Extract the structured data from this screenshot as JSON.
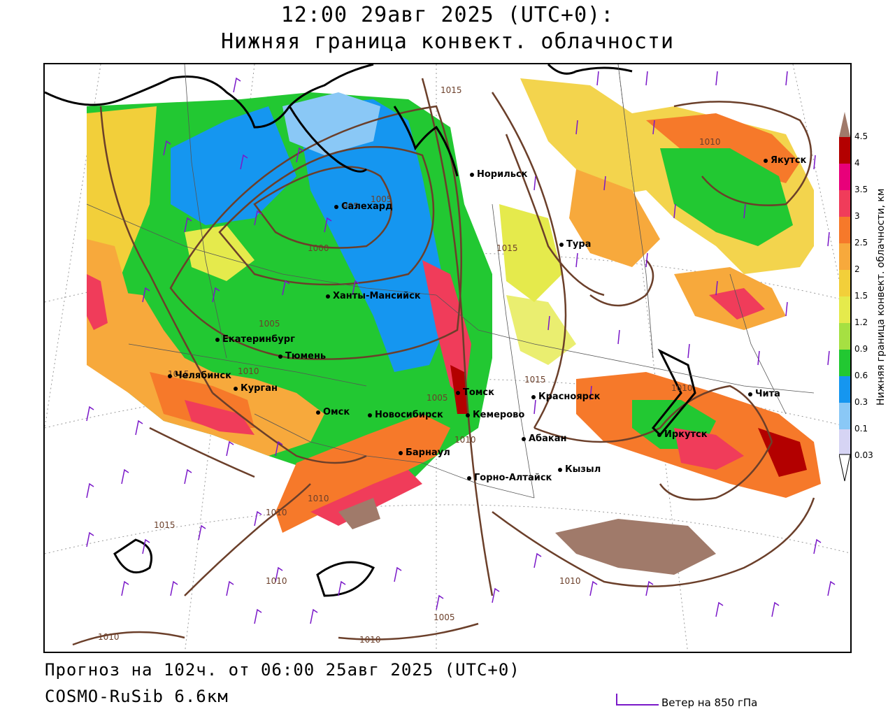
{
  "title": {
    "line1": "12:00 29авг 2025 (UTC+0):",
    "line2": "Нижняя граница конвект. облачности"
  },
  "footer": {
    "forecast": "Прогноз на 102ч. от 06:00 25авг 2025 (UTC+0)",
    "model": "COSMO-RuSib 6.6км",
    "wind_legend": "Ветер на 850 гПа"
  },
  "legend": {
    "title": "Нижняя граница конвект. облачности, км",
    "ticks": [
      "4.5",
      "4",
      "3.5",
      "3",
      "2.5",
      "2",
      "1.5",
      "1.2",
      "0.9",
      "0.6",
      "0.3",
      "0.1",
      "0.03"
    ],
    "colors": [
      "#a07a6a",
      "#b30000",
      "#e8007a",
      "#f03c5a",
      "#f6792a",
      "#f7a93c",
      "#f2cf3a",
      "#e5ea4c",
      "#a6e042",
      "#22c832",
      "#1596f0",
      "#8ac8f6",
      "#d6d4f4"
    ]
  },
  "cities": [
    {
      "name": "Норильск"
    },
    {
      "name": "Якутск"
    },
    {
      "name": "Салехард"
    },
    {
      "name": "Тура"
    },
    {
      "name": "Ханты-Мансийск"
    },
    {
      "name": "Екатеринбург"
    },
    {
      "name": "Тюмень"
    },
    {
      "name": "Челябинск"
    },
    {
      "name": "Курган"
    },
    {
      "name": "Омск"
    },
    {
      "name": "Новосибирск"
    },
    {
      "name": "Томск"
    },
    {
      "name": "Кемерово"
    },
    {
      "name": "Красноярск"
    },
    {
      "name": "Барнаул"
    },
    {
      "name": "Абакан"
    },
    {
      "name": "Кызыл"
    },
    {
      "name": "Горно-Алтайск"
    },
    {
      "name": "Иркутск"
    },
    {
      "name": "Чита"
    }
  ],
  "isobars": [
    "1015",
    "1010",
    "1005",
    "1000",
    "995",
    "1010",
    "1015",
    "1015",
    "1010",
    "1005",
    "1015",
    "1010",
    "1010",
    "1005",
    "1010",
    "1015",
    "1010",
    "1010",
    "1010",
    "1005",
    "1010"
  ]
}
